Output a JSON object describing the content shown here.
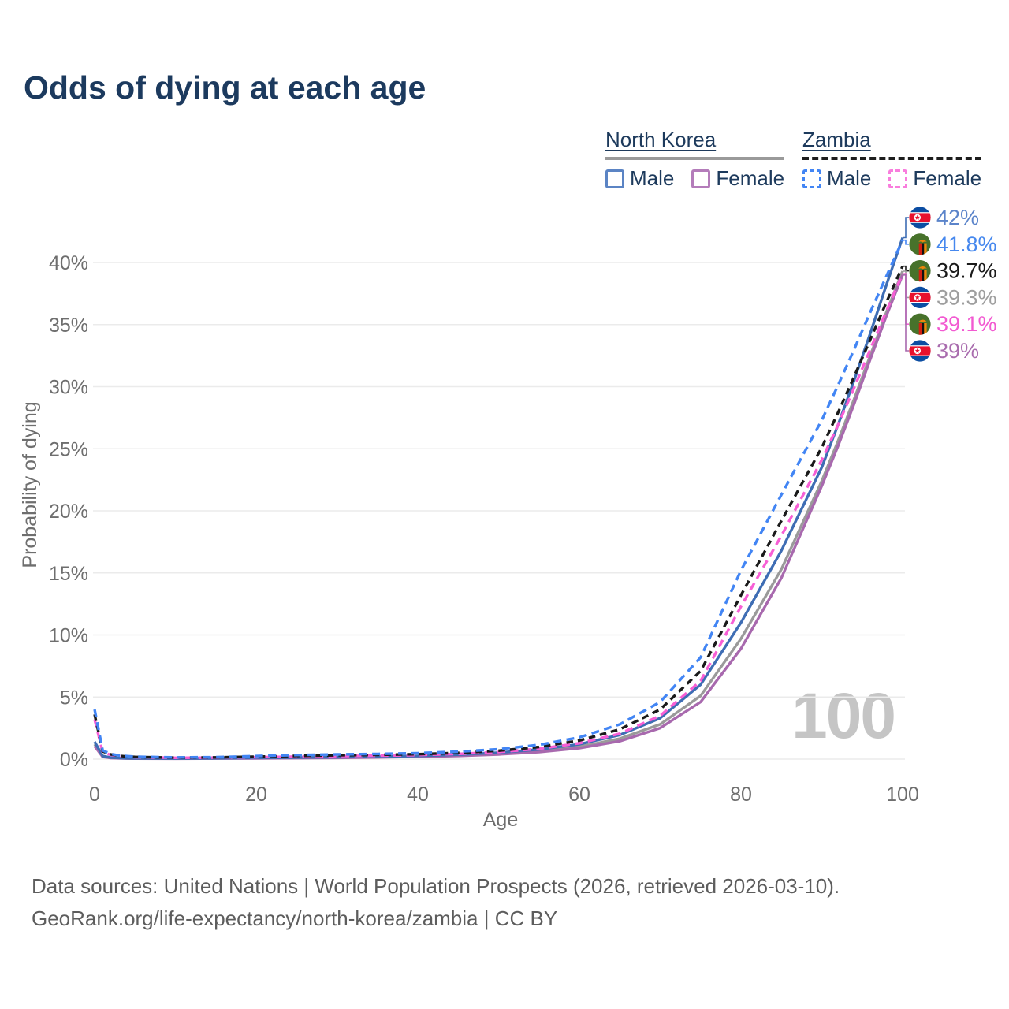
{
  "header": {
    "title": "Odds of dying at each age"
  },
  "legend": {
    "north_korea": {
      "title": "North Korea",
      "male": "Male",
      "female": "Female"
    },
    "zambia": {
      "title": "Zambia",
      "male": "Male",
      "female": "Female"
    }
  },
  "chart_data": {
    "type": "line",
    "title": "Odds of dying at each age",
    "xlabel": "Age",
    "ylabel": "Probability of dying",
    "xlim": [
      0,
      100
    ],
    "ylim": [
      0,
      43
    ],
    "x_ticks": [
      0,
      20,
      40,
      60,
      80,
      100
    ],
    "y_ticks": [
      0,
      5,
      10,
      15,
      20,
      25,
      30,
      35,
      40
    ],
    "grid": "horizontal",
    "legend_position": "top-right",
    "age_counter": "100",
    "unit": "%",
    "x": [
      0,
      1,
      2,
      3,
      4,
      5,
      10,
      15,
      20,
      25,
      30,
      35,
      40,
      45,
      50,
      55,
      60,
      65,
      70,
      75,
      80,
      85,
      90,
      92,
      94,
      96,
      98,
      100
    ],
    "series": [
      {
        "name": "North Korea Male",
        "flag": "north-korea",
        "color": "#3e6db4",
        "label_color": "#5b84ca",
        "dash": null,
        "end_label": "42%",
        "values": [
          1.4,
          0.25,
          0.12,
          0.09,
          0.07,
          0.06,
          0.05,
          0.07,
          0.1,
          0.13,
          0.16,
          0.2,
          0.26,
          0.36,
          0.52,
          0.78,
          1.2,
          1.95,
          3.3,
          6.0,
          11.0,
          16.8,
          23.5,
          26.9,
          30.5,
          34.3,
          38.2,
          42.0
        ]
      },
      {
        "name": "Zambia Male",
        "flag": "zambia",
        "color": "#4285f4",
        "label_color": "#4688ee",
        "dash": "10 6.5",
        "end_label": "41.8%",
        "values": [
          4.0,
          0.7,
          0.42,
          0.3,
          0.24,
          0.2,
          0.14,
          0.16,
          0.25,
          0.33,
          0.38,
          0.42,
          0.48,
          0.6,
          0.8,
          1.15,
          1.75,
          2.8,
          4.6,
          8.2,
          15.2,
          21.3,
          27.3,
          30.1,
          33.0,
          36.0,
          38.9,
          41.8
        ]
      },
      {
        "name": "Zambia",
        "flag": "zambia",
        "color": "#1a1a1a",
        "label_color": "#1a1a1a",
        "dash": "8.5 6",
        "end_label": "39.7%",
        "values": [
          3.6,
          0.62,
          0.38,
          0.27,
          0.21,
          0.18,
          0.12,
          0.14,
          0.2,
          0.26,
          0.31,
          0.35,
          0.4,
          0.5,
          0.68,
          0.98,
          1.5,
          2.4,
          4.0,
          7.1,
          13.2,
          19.2,
          25.1,
          27.9,
          30.8,
          33.8,
          36.8,
          39.7
        ]
      },
      {
        "name": "North Korea",
        "flag": "north-korea",
        "color": "#9a9a9a",
        "label_color": "#9e9e9e",
        "dash": null,
        "end_label": "39.3%",
        "values": [
          1.2,
          0.21,
          0.1,
          0.08,
          0.06,
          0.05,
          0.045,
          0.06,
          0.08,
          0.1,
          0.13,
          0.17,
          0.22,
          0.3,
          0.44,
          0.66,
          1.0,
          1.65,
          2.8,
          5.1,
          9.7,
          15.3,
          22.4,
          25.6,
          29.0,
          32.5,
          36.0,
          39.3
        ]
      },
      {
        "name": "Zambia Female",
        "flag": "zambia",
        "color": "#f75fd5",
        "label_color": "#f25ad1",
        "dash": "10 6.5",
        "end_label": "39.1%",
        "values": [
          3.2,
          0.55,
          0.34,
          0.24,
          0.19,
          0.16,
          0.11,
          0.12,
          0.16,
          0.2,
          0.24,
          0.28,
          0.33,
          0.42,
          0.57,
          0.83,
          1.28,
          2.05,
          3.5,
          6.3,
          12.3,
          18.0,
          24.1,
          26.9,
          29.9,
          33.0,
          36.1,
          39.1
        ]
      },
      {
        "name": "North Korea Female",
        "flag": "north-korea",
        "color": "#a869ae",
        "label_color": "#a96cae",
        "dash": null,
        "end_label": "39%",
        "values": [
          1.05,
          0.18,
          0.09,
          0.07,
          0.05,
          0.045,
          0.04,
          0.05,
          0.06,
          0.08,
          0.1,
          0.14,
          0.19,
          0.26,
          0.38,
          0.57,
          0.88,
          1.45,
          2.5,
          4.6,
          8.9,
          14.6,
          22.0,
          25.2,
          28.6,
          32.2,
          35.7,
          39.0
        ]
      }
    ]
  },
  "footer": {
    "line1": "Data sources: United Nations | World Population Prospects (2026, retrieved 2026-03-10).",
    "line2": "GeoRank.org/life-expectancy/north-korea/zambia | CC BY"
  }
}
